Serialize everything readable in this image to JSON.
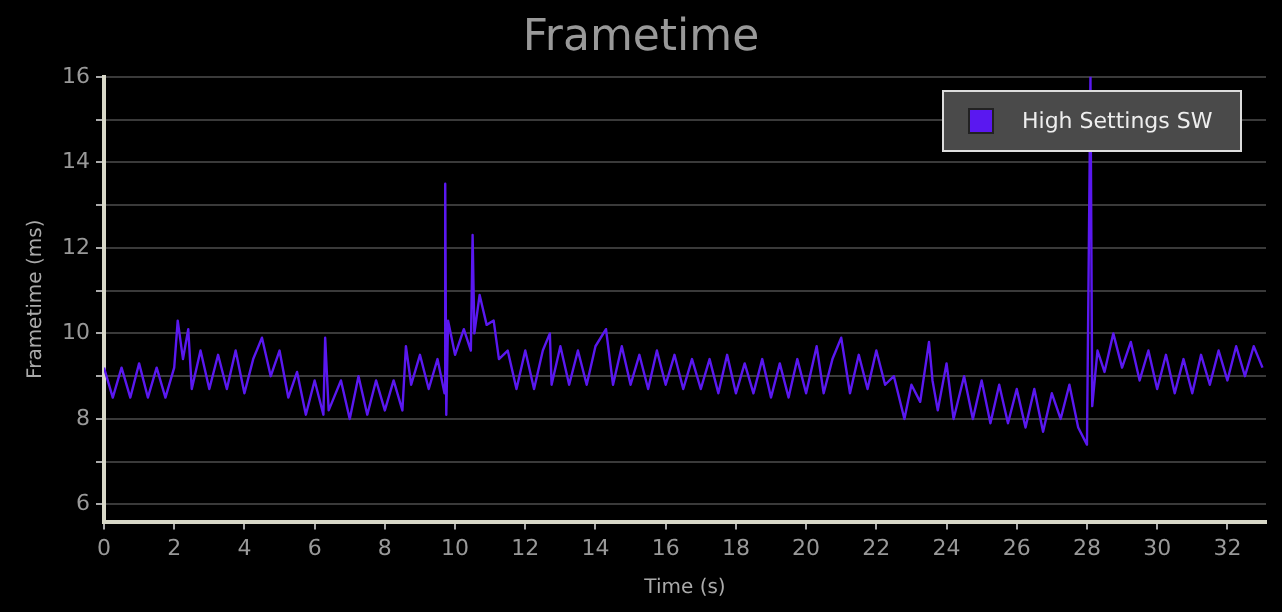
{
  "chart_data": {
    "type": "line",
    "title": "Frametime",
    "xlabel": "Time (s)",
    "ylabel": "Frametime (ms)",
    "xlim": [
      0,
      33.1
    ],
    "xticks": [
      0,
      2,
      4,
      6,
      8,
      10,
      12,
      14,
      16,
      18,
      20,
      22,
      24,
      26,
      28,
      30,
      32
    ],
    "ylim": [
      5.6,
      16
    ],
    "yticks": [
      6,
      {
        "value": 7,
        "label": null
      },
      8,
      {
        "value": 9,
        "label": null
      },
      10,
      {
        "value": 11,
        "label": null
      },
      12,
      {
        "value": 13,
        "label": null
      },
      14,
      {
        "value": 15,
        "label": null
      },
      16
    ],
    "grid": "y",
    "legend": "top right",
    "marker": "none",
    "line_style": "solid",
    "series": [
      {
        "name": "High Settings SW",
        "color": "#5a18f0",
        "x": [
          0,
          0.25,
          0.5,
          0.75,
          1,
          1.25,
          1.5,
          1.75,
          2,
          2.1,
          2.25,
          2.4,
          2.5,
          2.75,
          3,
          3.25,
          3.5,
          3.75,
          4,
          4.25,
          4.5,
          4.75,
          5,
          5.25,
          5.5,
          5.75,
          6,
          6.25,
          6.3,
          6.4,
          6.75,
          7,
          7.25,
          7.5,
          7.75,
          8,
          8.25,
          8.5,
          8.6,
          8.75,
          9,
          9.25,
          9.5,
          9.7,
          9.72,
          9.75,
          9.8,
          10,
          10.25,
          10.45,
          10.5,
          10.55,
          10.7,
          10.9,
          11.1,
          11.25,
          11.5,
          11.75,
          12,
          12.25,
          12.5,
          12.7,
          12.75,
          13,
          13.25,
          13.5,
          13.75,
          14,
          14.3,
          14.5,
          14.75,
          15,
          15.25,
          15.5,
          15.75,
          16,
          16.25,
          16.5,
          16.75,
          17,
          17.25,
          17.5,
          17.75,
          18,
          18.25,
          18.5,
          18.75,
          19,
          19.25,
          19.5,
          19.75,
          20,
          20.3,
          20.5,
          20.75,
          21,
          21.25,
          21.5,
          21.75,
          22,
          22.25,
          22.5,
          22.8,
          23,
          23.25,
          23.5,
          23.6,
          23.75,
          24,
          24.2,
          24.5,
          24.75,
          25,
          25.25,
          25.5,
          25.75,
          26,
          26.25,
          26.5,
          26.75,
          27,
          27.25,
          27.5,
          27.75,
          28,
          28.1,
          28.15,
          28.3,
          28.5,
          28.75,
          29,
          29.25,
          29.5,
          29.75,
          30,
          30.25,
          30.5,
          30.75,
          31,
          31.25,
          31.5,
          31.75,
          32,
          32.25,
          32.5,
          32.75,
          33
        ],
        "values": [
          9.2,
          8.5,
          9.2,
          8.5,
          9.3,
          8.5,
          9.2,
          8.5,
          9.2,
          10.3,
          9.4,
          10.1,
          8.7,
          9.6,
          8.7,
          9.5,
          8.7,
          9.6,
          8.6,
          9.4,
          9.9,
          9,
          9.6,
          8.5,
          9.1,
          8.1,
          8.9,
          8.1,
          9.9,
          8.2,
          8.9,
          8,
          9,
          8.1,
          8.9,
          8.2,
          8.9,
          8.2,
          9.7,
          8.8,
          9.5,
          8.7,
          9.4,
          8.6,
          13.5,
          8.1,
          10.3,
          9.5,
          10.1,
          9.6,
          12.3,
          10,
          10.9,
          10.2,
          10.3,
          9.4,
          9.6,
          8.7,
          9.6,
          8.7,
          9.6,
          10,
          8.8,
          9.7,
          8.8,
          9.6,
          8.8,
          9.7,
          10.1,
          8.8,
          9.7,
          8.8,
          9.5,
          8.7,
          9.6,
          8.8,
          9.5,
          8.7,
          9.4,
          8.7,
          9.4,
          8.6,
          9.5,
          8.6,
          9.3,
          8.6,
          9.4,
          8.5,
          9.3,
          8.5,
          9.4,
          8.6,
          9.7,
          8.6,
          9.4,
          9.9,
          8.6,
          9.5,
          8.7,
          9.6,
          8.8,
          9,
          8,
          8.8,
          8.4,
          9.8,
          8.9,
          8.2,
          9.3,
          8,
          9,
          8,
          8.9,
          7.9,
          8.8,
          7.9,
          8.7,
          7.8,
          8.7,
          7.7,
          8.6,
          8,
          8.8,
          7.8,
          7.4,
          16,
          8.3,
          9.6,
          9.1,
          10,
          9.2,
          9.8,
          8.9,
          9.6,
          8.7,
          9.5,
          8.6,
          9.4,
          8.6,
          9.5,
          8.8,
          9.6,
          8.9,
          9.7,
          9,
          9.7,
          9.2
        ]
      }
    ]
  }
}
